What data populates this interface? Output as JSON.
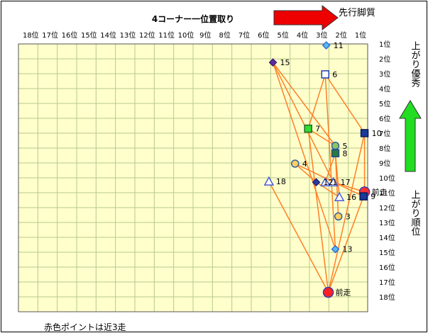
{
  "chart_data": {
    "type": "scatter",
    "title": "4コーナー一位置取り",
    "x_tick_labels": [
      "18位",
      "17位",
      "16位",
      "15位",
      "14位",
      "13位",
      "12位",
      "11位",
      "10位",
      "9位",
      "8位",
      "7位",
      "6位",
      "5位",
      "4位",
      "3位",
      "2位",
      "1位"
    ],
    "y_tick_labels": [
      "1位",
      "2位",
      "3位",
      "4位",
      "5位",
      "6位",
      "7位",
      "8位",
      "9位",
      "10位",
      "11位",
      "12位",
      "13位",
      "14位",
      "15位",
      "16位",
      "17位",
      "18位"
    ],
    "xlim": [
      18,
      1
    ],
    "ylim": [
      1,
      18
    ],
    "grid": true,
    "plot_background": "#ffffcc",
    "grid_color": "#b7c98a",
    "line_color": "#ff7f27",
    "arrow_right_label": "先行脚質",
    "arrow_up_label": "上がり優秀",
    "y_side_label": "上がり順位",
    "footnote": "赤色ポイントは近3走",
    "points": [
      {
        "label": "11",
        "x": 2.95,
        "y": 1.0,
        "marker": "diamond",
        "fill": "#5bb7f0",
        "stroke": "#1f5fd0"
      },
      {
        "label": "15",
        "x": 5.6,
        "y": 2.15,
        "marker": "diamond",
        "fill": "#5b2fa0",
        "stroke": "#3a1470"
      },
      {
        "label": "6",
        "x": 3.0,
        "y": 2.95,
        "marker": "square",
        "fill": "#ffffff",
        "stroke": "#1f3fb0"
      },
      {
        "label": "7",
        "x": 3.85,
        "y": 6.6,
        "marker": "square",
        "fill": "#33dd33",
        "stroke": "#1a6a1a"
      },
      {
        "label": "10",
        "x": 1.05,
        "y": 6.9,
        "marker": "square",
        "fill": "#1a3a9a",
        "stroke": "#0a1a5a"
      },
      {
        "label": "5",
        "x": 2.5,
        "y": 7.75,
        "marker": "circle",
        "fill": "#8fc460",
        "stroke": "#2f5f9f"
      },
      {
        "label": "8",
        "x": 2.5,
        "y": 8.25,
        "marker": "square",
        "fill": "#2a7a3a",
        "stroke": "#1a4a9a"
      },
      {
        "label": "4",
        "x": 4.5,
        "y": 8.95,
        "marker": "circle",
        "fill": "#ffd060",
        "stroke": "#2f5f9f"
      },
      {
        "label": "18",
        "x": 5.8,
        "y": 10.15,
        "marker": "triangle",
        "fill": "#ffffff",
        "stroke": "#4a5ad8"
      },
      {
        "label": "12",
        "x": 3.45,
        "y": 10.2,
        "marker": "diamond",
        "fill": "#2a3aa0",
        "stroke": "#10207a"
      },
      {
        "label": "1",
        "x": 3.0,
        "y": 10.2,
        "marker": "triangle",
        "fill": "#ffffff",
        "stroke": "#4a5ad8"
      },
      {
        "label": "17",
        "x": 2.6,
        "y": 10.2,
        "marker": "triangle",
        "fill": "#ffffff",
        "stroke": "#4a5ad8"
      },
      {
        "label": "前走",
        "x": 1.05,
        "y": 10.85,
        "marker": "circle",
        "fill": "#ff3030",
        "stroke": "#3a3ab0"
      },
      {
        "label": "16",
        "x": 2.3,
        "y": 11.2,
        "marker": "triangle",
        "fill": "#ffffff",
        "stroke": "#4a5ad8"
      },
      {
        "label": "9",
        "x": 1.1,
        "y": 11.15,
        "marker": "square",
        "fill": "#1a3a9a",
        "stroke": "#0a1a5a"
      },
      {
        "label": "3",
        "x": 2.35,
        "y": 12.5,
        "marker": "circle",
        "fill": "#ffd060",
        "stroke": "#2f5f9f"
      },
      {
        "label": "13",
        "x": 2.5,
        "y": 14.7,
        "marker": "diamond",
        "fill": "#5bb7f0",
        "stroke": "#1f5fd0"
      },
      {
        "label": "前走",
        "x": 2.85,
        "y": 17.6,
        "marker": "circle",
        "fill": "#ff2020",
        "stroke": "#3a3ab0"
      }
    ],
    "connections": [
      [
        1,
        5
      ],
      [
        1,
        11
      ],
      [
        1,
        16
      ],
      [
        2,
        3
      ],
      [
        2,
        16
      ],
      [
        2,
        4
      ],
      [
        3,
        17
      ],
      [
        3,
        5
      ],
      [
        4,
        17
      ],
      [
        4,
        12
      ],
      [
        12,
        11
      ],
      [
        7,
        9
      ],
      [
        7,
        14
      ],
      [
        9,
        13
      ],
      [
        13,
        6
      ],
      [
        6,
        10
      ],
      [
        6,
        15
      ],
      [
        14,
        17
      ],
      [
        8,
        17
      ]
    ]
  }
}
